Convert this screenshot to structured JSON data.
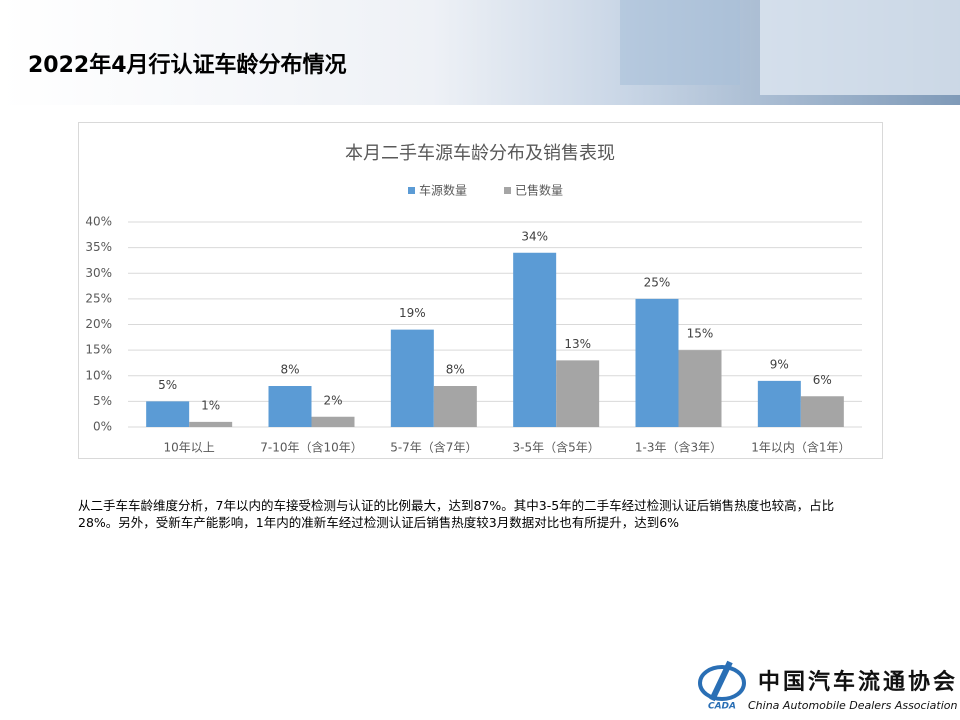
{
  "header": {
    "title": "2022年4月行认证车龄分布情况"
  },
  "chart_data": {
    "type": "bar",
    "title": "本月二手车源车龄分布及销售表现",
    "categories": [
      "10年以上",
      "7-10年（含10年）",
      "5-7年（含7年）",
      "3-5年（含5年）",
      "1-3年（含3年）",
      "1年以内（含1年）"
    ],
    "series": [
      {
        "name": "车源数量",
        "color": "#5b9bd5",
        "values": [
          5,
          8,
          19,
          34,
          25,
          9
        ],
        "value_labels": [
          "5%",
          "8%",
          "19%",
          "34%",
          "25%",
          "9%"
        ]
      },
      {
        "name": "已售数量",
        "color": "#a5a5a5",
        "values": [
          1,
          2,
          8,
          13,
          15,
          6
        ],
        "value_labels": [
          "1%",
          "2%",
          "8%",
          "13%",
          "15%",
          "6%"
        ]
      }
    ],
    "ylim": [
      0,
      40
    ],
    "yticks": [
      {
        "value": 0,
        "label": "0%"
      },
      {
        "value": 5,
        "label": "5%"
      },
      {
        "value": 10,
        "label": "10%"
      },
      {
        "value": 15,
        "label": "15%"
      },
      {
        "value": 20,
        "label": "20%"
      },
      {
        "value": 25,
        "label": "25%"
      },
      {
        "value": 30,
        "label": "30%"
      },
      {
        "value": 35,
        "label": "35%"
      },
      {
        "value": 40,
        "label": "40%"
      }
    ],
    "grid": true,
    "legend": "top"
  },
  "note": "从二手车车龄维度分析，7年以内的车接受检测与认证的比例最大，达到87%。其中3-5年的二手车经过检测认证后销售热度也较高，占比28%。另外，受新车产能影响，1年内的准新车经过检测认证后销售热度较3月数据对比也有所提升，达到6%",
  "logo": {
    "name": "中国汽车流通协会",
    "english": "China Automobile Dealers Association",
    "abbr": "CADA"
  }
}
